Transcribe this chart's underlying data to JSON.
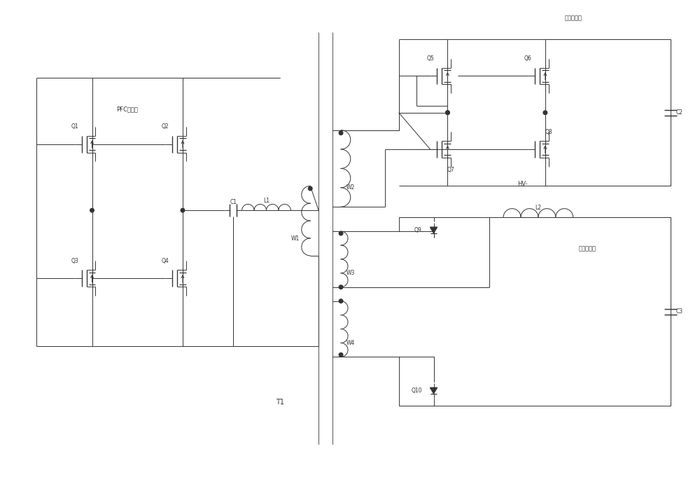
{
  "bg_color": "#ffffff",
  "line_color": "#333333",
  "text_color": "#333333",
  "labels": {
    "PFC": "PFC高压侧",
    "HV_battery": "高压电池侧",
    "LV_battery": "低压电池侧",
    "T1": "T1",
    "HV": "HV-"
  }
}
